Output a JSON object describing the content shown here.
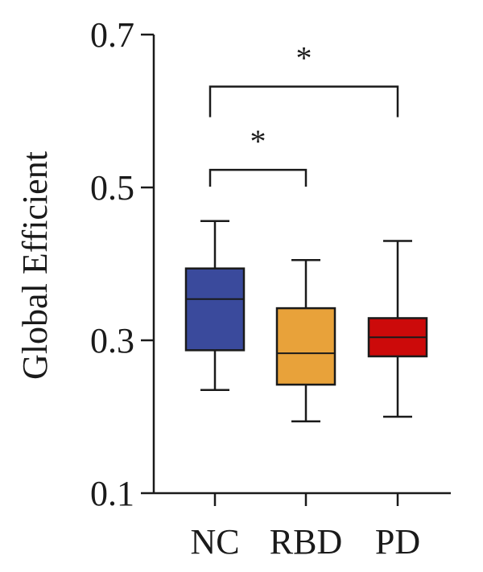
{
  "chart_data": {
    "type": "box",
    "title": "",
    "xlabel": "",
    "ylabel": "Global Efficient",
    "ylim": [
      0.1,
      0.7
    ],
    "y_ticks": [
      0.1,
      0.3,
      0.5,
      0.7
    ],
    "y_tick_labels": [
      "0.1",
      "0.3",
      "0.5",
      "0.7"
    ],
    "grid": false,
    "legend": "none",
    "categories": [
      "NC",
      "RBD",
      "PD"
    ],
    "boxes": [
      {
        "category": "NC",
        "whisker_low": 0.235,
        "q1": 0.287,
        "median": 0.354,
        "q3": 0.394,
        "whisker_high": 0.456,
        "color": "#3a4a9c"
      },
      {
        "category": "RBD",
        "whisker_low": 0.194,
        "q1": 0.242,
        "median": 0.283,
        "q3": 0.342,
        "whisker_high": 0.405,
        "color": "#e8a23a"
      },
      {
        "category": "PD",
        "whisker_low": 0.2,
        "q1": 0.279,
        "median": 0.304,
        "q3": 0.329,
        "whisker_high": 0.43,
        "color": "#cc0a0a"
      }
    ],
    "significance": [
      {
        "from": "NC",
        "to": "RBD",
        "label": "*",
        "y": 0.523,
        "drop": 0.022
      },
      {
        "from": "NC",
        "to": "PD",
        "label": "*",
        "y": 0.632,
        "drop": 0.04
      }
    ]
  }
}
